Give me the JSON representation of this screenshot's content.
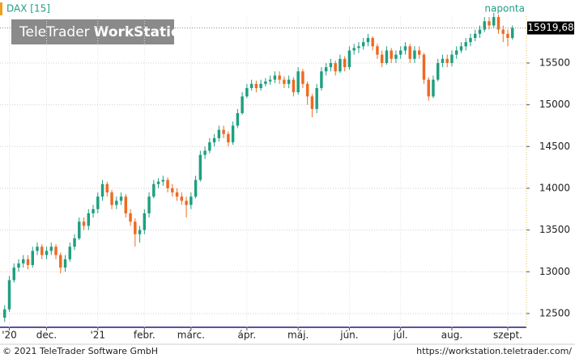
{
  "chart_data": {
    "type": "candlestick",
    "title": "DAX [15]",
    "period": "naponta",
    "watermark": {
      "brand": "TeleTrader",
      "product": "WorkStation"
    },
    "footer_left": "© 2021 TeleTrader Software GmbH",
    "footer_right": "https://workstation.teletrader.com/",
    "last_price": {
      "value": 15919.68,
      "label": "15919,68"
    },
    "up_color": "#1f9f80",
    "down_color": "#ee6a22",
    "xlim": [
      -1,
      112
    ],
    "ylim": [
      12335,
      16061
    ],
    "yticks": [
      12500,
      13000,
      13500,
      14000,
      14500,
      15000,
      15500
    ],
    "xticks": [
      {
        "value": 1,
        "label": "'20"
      },
      {
        "value": 9,
        "label": "dec."
      },
      {
        "value": 20,
        "label": "'21"
      },
      {
        "value": 30,
        "label": "febr."
      },
      {
        "value": 40,
        "label": "márc."
      },
      {
        "value": 52,
        "label": "ápr."
      },
      {
        "value": 63,
        "label": "máj."
      },
      {
        "value": 74,
        "label": "jún."
      },
      {
        "value": 85,
        "label": "júl."
      },
      {
        "value": 96,
        "label": "aug."
      },
      {
        "value": 108,
        "label": "szept."
      }
    ],
    "grid": true,
    "open": [
      12450,
      12550,
      12900,
      13050,
      13100,
      13150,
      13080,
      13250,
      13300,
      13200,
      13250,
      13300,
      13200,
      13050,
      13150,
      13300,
      13400,
      13600,
      13550,
      13700,
      13750,
      13900,
      14050,
      13950,
      13800,
      13850,
      13900,
      13700,
      13600,
      13450,
      13500,
      13700,
      13900,
      14050,
      14080,
      14100,
      14000,
      13950,
      13900,
      13850,
      13800,
      13900,
      14100,
      14400,
      14450,
      14550,
      14600,
      14700,
      14650,
      14550,
      14750,
      14900,
      15100,
      15200,
      15250,
      15200,
      15250,
      15280,
      15300,
      15350,
      15300,
      15250,
      15300,
      15150,
      15400,
      15250,
      15100,
      14950,
      15200,
      15400,
      15450,
      15500,
      15400,
      15550,
      15450,
      15650,
      15680,
      15700,
      15750,
      15800,
      15700,
      15600,
      15500,
      15650,
      15550,
      15600,
      15650,
      15700,
      15550,
      15650,
      15600,
      15300,
      15100,
      15300,
      15500,
      15550,
      15500,
      15600,
      15650,
      15700,
      15750,
      15800,
      15850,
      15900,
      16000,
      15950,
      16050,
      15900,
      15850,
      15800
    ],
    "high": [
      12600,
      12950,
      13100,
      13150,
      13200,
      13200,
      13300,
      13350,
      13330,
      13300,
      13350,
      13330,
      13230,
      13200,
      13350,
      13450,
      13650,
      13650,
      13750,
      13800,
      13950,
      14100,
      14080,
      13980,
      13900,
      13950,
      13930,
      13750,
      13640,
      13550,
      13750,
      13950,
      14100,
      14120,
      14150,
      14130,
      14050,
      14000,
      13950,
      13900,
      13950,
      14150,
      14450,
      14500,
      14600,
      14650,
      14750,
      14750,
      14680,
      14800,
      14950,
      15150,
      15250,
      15300,
      15290,
      15300,
      15320,
      15350,
      15400,
      15400,
      15340,
      15350,
      15330,
      15450,
      15430,
      15280,
      15130,
      15250,
      15450,
      15500,
      15550,
      15530,
      15600,
      15580,
      15700,
      15730,
      15750,
      15800,
      15850,
      15820,
      15730,
      15650,
      15700,
      15680,
      15650,
      15700,
      15750,
      15730,
      15700,
      15700,
      15620,
      15330,
      15350,
      15550,
      15600,
      15600,
      15650,
      15700,
      15750,
      15800,
      15850,
      15900,
      15950,
      16050,
      16050,
      16100,
      16080,
      15950,
      15900,
      15950
    ],
    "low": [
      12400,
      12520,
      12870,
      13000,
      13050,
      13030,
      13050,
      13200,
      13150,
      13150,
      13200,
      13150,
      12980,
      13000,
      13120,
      13260,
      13380,
      13500,
      13500,
      13650,
      13700,
      13850,
      13900,
      13750,
      13750,
      13800,
      13650,
      13550,
      13300,
      13350,
      13450,
      13650,
      13880,
      14000,
      14030,
      13950,
      13900,
      13850,
      13800,
      13650,
      13750,
      13880,
      14080,
      14350,
      14420,
      14500,
      14560,
      14600,
      14500,
      14520,
      14720,
      14880,
      15080,
      15170,
      15150,
      15170,
      15220,
      15240,
      15260,
      15250,
      15200,
      15200,
      15100,
      15120,
      15200,
      15000,
      14850,
      14900,
      15170,
      15350,
      15400,
      15350,
      15380,
      15400,
      15420,
      15600,
      15620,
      15660,
      15700,
      15650,
      15550,
      15450,
      15480,
      15500,
      15500,
      15550,
      15600,
      15500,
      15500,
      15550,
      15250,
      15050,
      15080,
      15280,
      15450,
      15450,
      15460,
      15550,
      15620,
      15650,
      15700,
      15760,
      15800,
      15870,
      15900,
      15920,
      15850,
      15750,
      15700,
      15780
    ],
    "close": [
      12550,
      12900,
      13050,
      13100,
      13150,
      13080,
      13250,
      13300,
      13200,
      13250,
      13300,
      13200,
      13050,
      13150,
      13300,
      13400,
      13600,
      13550,
      13700,
      13750,
      13900,
      14050,
      13950,
      13800,
      13850,
      13900,
      13700,
      13600,
      13450,
      13500,
      13700,
      13900,
      14050,
      14080,
      14100,
      14000,
      13950,
      13900,
      13850,
      13800,
      13900,
      14100,
      14400,
      14450,
      14550,
      14600,
      14700,
      14650,
      14550,
      14750,
      14900,
      15100,
      15200,
      15250,
      15200,
      15250,
      15280,
      15300,
      15350,
      15300,
      15250,
      15300,
      15150,
      15400,
      15250,
      15100,
      14950,
      15200,
      15400,
      15450,
      15500,
      15400,
      15550,
      15450,
      15650,
      15680,
      15700,
      15750,
      15800,
      15700,
      15600,
      15500,
      15650,
      15550,
      15600,
      15650,
      15700,
      15550,
      15650,
      15600,
      15300,
      15100,
      15300,
      15500,
      15550,
      15500,
      15600,
      15650,
      15700,
      15750,
      15800,
      15850,
      15900,
      16000,
      15950,
      16050,
      15900,
      15850,
      15800,
      15920
    ]
  }
}
